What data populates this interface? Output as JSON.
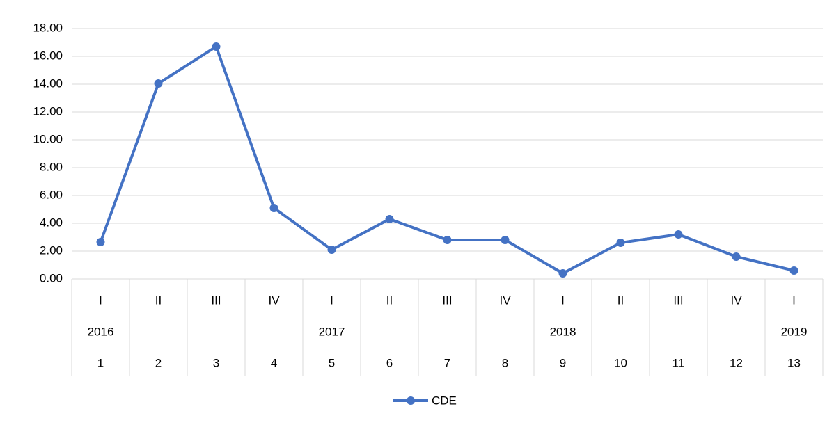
{
  "chart_data": {
    "type": "line",
    "categories": [
      "1",
      "2",
      "3",
      "4",
      "5",
      "6",
      "7",
      "8",
      "9",
      "10",
      "11",
      "12",
      "13"
    ],
    "quarters": [
      "I",
      "II",
      "III",
      "IV",
      "I",
      "II",
      "III",
      "IV",
      "I",
      "II",
      "III",
      "IV",
      "I"
    ],
    "years": [
      "2016",
      null,
      null,
      null,
      "2017",
      null,
      null,
      null,
      "2018",
      null,
      null,
      null,
      "2019"
    ],
    "series": [
      {
        "name": "CDE",
        "color": "#4472c4",
        "values": [
          2.65,
          14.05,
          16.7,
          5.1,
          2.1,
          4.3,
          2.8,
          2.8,
          0.4,
          2.6,
          3.2,
          1.6,
          0.6
        ]
      }
    ],
    "ylim": [
      0,
      18
    ],
    "yticks": [
      {
        "value": 0,
        "label": "0.00"
      },
      {
        "value": 2,
        "label": "2.00"
      },
      {
        "value": 4,
        "label": "4.00"
      },
      {
        "value": 6,
        "label": "6.00"
      },
      {
        "value": 8,
        "label": "8.00"
      },
      {
        "value": 10,
        "label": "10.00"
      },
      {
        "value": 12,
        "label": "12.00"
      },
      {
        "value": 14,
        "label": "14.00"
      },
      {
        "value": 16,
        "label": "16.00"
      },
      {
        "value": 18,
        "label": "18.00"
      }
    ],
    "grid": true,
    "legend": "bottom"
  }
}
